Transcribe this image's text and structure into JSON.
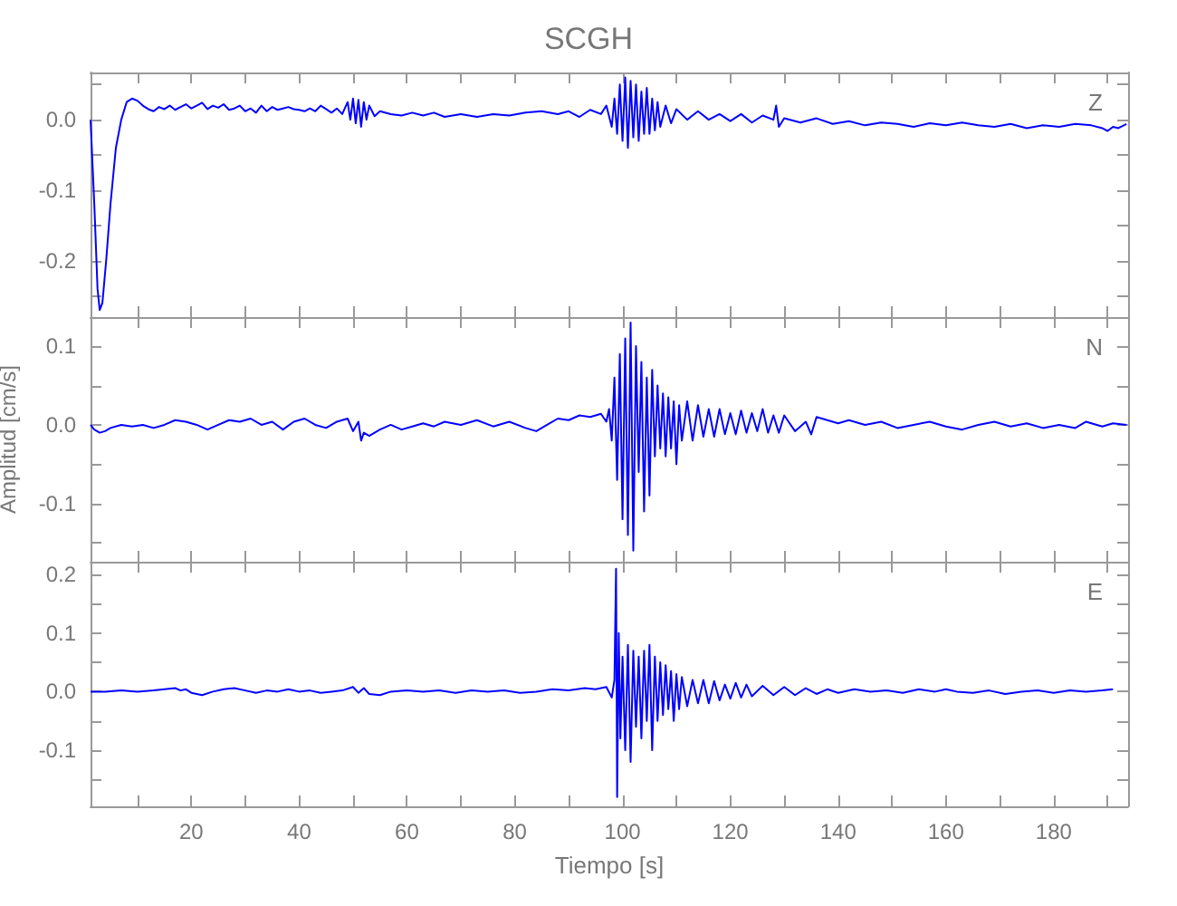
{
  "chart_data": [
    {
      "type": "line",
      "title": "SCGH",
      "annotations": [
        "Z"
      ],
      "color": "#0000ff",
      "grid": false,
      "tick_labels": "y",
      "xlim": [
        1.3,
        193.8
      ],
      "ylim": [
        -0.28,
        0.067
      ],
      "xticks": [
        {
          "value": 10,
          "label": null
        },
        {
          "value": 20,
          "label": null
        },
        {
          "value": 30,
          "label": null
        },
        {
          "value": 40,
          "label": null
        },
        {
          "value": 50,
          "label": null
        },
        {
          "value": 60,
          "label": null
        },
        {
          "value": 70,
          "label": null
        },
        {
          "value": 80,
          "label": null
        },
        {
          "value": 90,
          "label": null
        },
        {
          "value": 100,
          "label": null
        },
        {
          "value": 110,
          "label": null
        },
        {
          "value": 120,
          "label": null
        },
        {
          "value": 130,
          "label": null
        },
        {
          "value": 140,
          "label": null
        },
        {
          "value": 150,
          "label": null
        },
        {
          "value": 160,
          "label": null
        },
        {
          "value": 170,
          "label": null
        },
        {
          "value": 180,
          "label": null
        },
        {
          "value": 190,
          "label": null
        }
      ],
      "yticks": [
        {
          "value": -0.25,
          "label": null
        },
        -0.2,
        {
          "value": -0.15,
          "label": null
        },
        -0.1,
        {
          "value": -0.05,
          "label": null
        },
        {
          "value": 0,
          "label": "0.0"
        },
        {
          "value": 0.05,
          "label": null
        }
      ],
      "x": [
        1.3,
        2.0,
        2.6,
        3.0,
        3.5,
        4.2,
        5,
        6,
        7,
        8,
        9,
        10,
        11,
        12,
        13,
        14,
        15,
        16,
        17,
        18,
        19,
        20,
        21,
        22,
        23,
        24,
        25,
        26,
        27,
        28,
        29,
        30,
        31,
        32,
        33,
        34,
        35,
        36,
        37,
        38,
        39,
        40,
        41,
        42,
        43,
        44,
        45,
        46,
        47,
        48,
        49,
        49.5,
        50,
        50.5,
        51,
        51.5,
        52,
        52.5,
        53,
        54,
        55,
        57,
        59,
        61,
        63,
        65,
        67,
        70,
        73,
        76,
        79,
        82,
        85,
        88,
        90,
        92,
        94,
        96,
        97,
        98,
        98.5,
        99,
        99.5,
        100,
        100.5,
        101,
        101.5,
        102,
        102.5,
        103,
        103.5,
        104,
        104.5,
        105,
        105.5,
        106,
        106.5,
        107,
        108,
        109,
        110,
        112,
        114,
        116,
        118,
        120,
        122,
        124,
        126,
        128,
        128.5,
        129,
        130,
        133,
        136,
        139,
        142,
        145,
        148,
        151,
        154,
        157,
        160,
        163,
        166,
        169,
        172,
        175,
        178,
        181,
        184,
        187,
        189,
        190,
        191,
        192,
        193.5
      ],
      "values": [
        0.0,
        -0.12,
        -0.24,
        -0.27,
        -0.26,
        -0.2,
        -0.12,
        -0.04,
        0.0,
        0.025,
        0.03,
        0.027,
        0.02,
        0.015,
        0.012,
        0.018,
        0.015,
        0.02,
        0.014,
        0.018,
        0.022,
        0.016,
        0.02,
        0.024,
        0.015,
        0.02,
        0.017,
        0.022,
        0.014,
        0.016,
        0.02,
        0.012,
        0.016,
        0.01,
        0.02,
        0.012,
        0.018,
        0.014,
        0.016,
        0.018,
        0.015,
        0.014,
        0.012,
        0.016,
        0.012,
        0.02,
        0.015,
        0.01,
        0.016,
        0.008,
        0.025,
        0.0,
        0.03,
        -0.005,
        0.028,
        -0.01,
        0.025,
        0.0,
        0.02,
        0.005,
        0.012,
        0.008,
        0.006,
        0.01,
        0.006,
        0.01,
        0.004,
        0.008,
        0.004,
        0.008,
        0.006,
        0.01,
        0.012,
        0.008,
        0.012,
        0.004,
        0.014,
        0.008,
        0.02,
        -0.01,
        0.03,
        -0.02,
        0.05,
        -0.03,
        0.06,
        -0.04,
        0.055,
        -0.025,
        0.05,
        -0.03,
        0.04,
        -0.02,
        0.045,
        -0.02,
        0.03,
        -0.015,
        0.025,
        -0.01,
        0.02,
        -0.005,
        0.015,
        0.0,
        0.012,
        0.0,
        0.008,
        -0.002,
        0.008,
        -0.004,
        0.006,
        0.0,
        0.02,
        -0.01,
        0.002,
        -0.004,
        0.002,
        -0.006,
        -0.002,
        -0.008,
        -0.004,
        -0.006,
        -0.01,
        -0.005,
        -0.008,
        -0.004,
        -0.008,
        -0.01,
        -0.006,
        -0.012,
        -0.008,
        -0.01,
        -0.006,
        -0.008,
        -0.012,
        -0.016,
        -0.01,
        -0.012,
        -0.006
      ]
    },
    {
      "type": "line",
      "ylabel": "Amplitud [cm/s]",
      "annotations": [
        "N"
      ],
      "color": "#0000ff",
      "grid": false,
      "tick_labels": "y",
      "xlim": [
        1.3,
        193.8
      ],
      "ylim": [
        -0.174,
        0.137
      ],
      "xticks": [
        {
          "value": 10,
          "label": null
        },
        {
          "value": 20,
          "label": null
        },
        {
          "value": 30,
          "label": null
        },
        {
          "value": 40,
          "label": null
        },
        {
          "value": 50,
          "label": null
        },
        {
          "value": 60,
          "label": null
        },
        {
          "value": 70,
          "label": null
        },
        {
          "value": 80,
          "label": null
        },
        {
          "value": 90,
          "label": null
        },
        {
          "value": 100,
          "label": null
        },
        {
          "value": 110,
          "label": null
        },
        {
          "value": 120,
          "label": null
        },
        {
          "value": 130,
          "label": null
        },
        {
          "value": 140,
          "label": null
        },
        {
          "value": 150,
          "label": null
        },
        {
          "value": 160,
          "label": null
        },
        {
          "value": 170,
          "label": null
        },
        {
          "value": 180,
          "label": null
        },
        {
          "value": 190,
          "label": null
        }
      ],
      "yticks": [
        {
          "value": -0.15,
          "label": null
        },
        -0.1,
        {
          "value": -0.05,
          "label": null
        },
        {
          "value": 0,
          "label": "0.0"
        },
        {
          "value": 0.05,
          "label": null
        },
        0.1
      ],
      "x": [
        1.3,
        2,
        3,
        4,
        5,
        7,
        9,
        11,
        13,
        15,
        17,
        19,
        21,
        23,
        25,
        27,
        29,
        31,
        33,
        35,
        37,
        39,
        41,
        43,
        45,
        47,
        49,
        50,
        51,
        51.5,
        52,
        53,
        55,
        57,
        59,
        61,
        63,
        65,
        67,
        70,
        73,
        76,
        79,
        82,
        84,
        86,
        88,
        90,
        92,
        94,
        96,
        97,
        97.5,
        98,
        98.5,
        99,
        99.5,
        100,
        100.5,
        101,
        101.5,
        102,
        102.5,
        103,
        103.5,
        104,
        104.5,
        105,
        105.5,
        106,
        106.5,
        107,
        107.5,
        108,
        108.5,
        109,
        109.5,
        110,
        110.5,
        111,
        112,
        113,
        114,
        115,
        116,
        117,
        118,
        119,
        120,
        121,
        122,
        123,
        124,
        125,
        126,
        127,
        128,
        129,
        130,
        132,
        134,
        135,
        136,
        138,
        140,
        142,
        145,
        148,
        151,
        154,
        157,
        160,
        163,
        166,
        169,
        172,
        175,
        178,
        181,
        184,
        186,
        189,
        191,
        193.5
      ],
      "values": [
        0.0,
        -0.006,
        -0.01,
        -0.008,
        -0.004,
        0.0,
        -0.002,
        0.0,
        -0.004,
        0.0,
        0.006,
        0.004,
        0.0,
        -0.006,
        0.0,
        0.006,
        0.004,
        0.008,
        0.0,
        0.004,
        -0.006,
        0.004,
        0.008,
        0.0,
        -0.004,
        0.004,
        0.008,
        -0.008,
        0.004,
        -0.02,
        -0.01,
        -0.014,
        -0.006,
        0.0,
        -0.006,
        -0.002,
        0.002,
        -0.002,
        0.004,
        0.0,
        0.006,
        -0.002,
        0.004,
        -0.004,
        -0.008,
        0.0,
        0.008,
        0.006,
        0.012,
        0.01,
        0.014,
        0.004,
        0.02,
        -0.02,
        0.06,
        -0.07,
        0.09,
        -0.12,
        0.11,
        -0.14,
        0.13,
        -0.16,
        0.1,
        -0.06,
        0.08,
        -0.11,
        0.06,
        -0.09,
        0.07,
        -0.04,
        0.05,
        -0.03,
        0.04,
        -0.04,
        0.035,
        -0.03,
        0.03,
        -0.05,
        0.025,
        -0.02,
        0.03,
        -0.02,
        0.025,
        -0.015,
        0.02,
        -0.015,
        0.02,
        -0.012,
        0.015,
        -0.012,
        0.018,
        -0.01,
        0.015,
        -0.008,
        0.02,
        -0.01,
        0.012,
        -0.01,
        0.012,
        -0.008,
        0.004,
        -0.012,
        0.01,
        0.006,
        0.002,
        0.006,
        0.0,
        0.004,
        -0.004,
        0.0,
        0.004,
        -0.002,
        -0.006,
        0.0,
        0.004,
        -0.002,
        0.002,
        -0.004,
        0.0,
        -0.004,
        0.004,
        -0.002,
        0.002,
        0.0
      ]
    },
    {
      "type": "line",
      "xlabel": "Tiempo [s]",
      "annotations": [
        "E"
      ],
      "color": "#0000ff",
      "grid": false,
      "xlim": [
        1.3,
        193.8
      ],
      "ylim": [
        -0.196,
        0.222
      ],
      "xticks": [
        {
          "value": 10,
          "label": null
        },
        20,
        {
          "value": 30,
          "label": null
        },
        40,
        {
          "value": 50,
          "label": null
        },
        60,
        {
          "value": 70,
          "label": null
        },
        80,
        {
          "value": 90,
          "label": null
        },
        100,
        {
          "value": 110,
          "label": null
        },
        120,
        {
          "value": 130,
          "label": null
        },
        140,
        {
          "value": 150,
          "label": null
        },
        160,
        {
          "value": 170,
          "label": null
        },
        180,
        {
          "value": 190,
          "label": null
        }
      ],
      "yticks": [
        {
          "value": -0.15,
          "label": null
        },
        -0.1,
        {
          "value": -0.05,
          "label": null
        },
        {
          "value": 0,
          "label": "0.0"
        },
        {
          "value": 0.05,
          "label": null
        },
        0.1,
        {
          "value": 0.15,
          "label": null
        },
        0.2
      ],
      "x": [
        1.3,
        4,
        7,
        10,
        13,
        15,
        17,
        18,
        19,
        20,
        22,
        24,
        26,
        28,
        30,
        32,
        34,
        36,
        38,
        40,
        42,
        44,
        46,
        48,
        50,
        51,
        52,
        53,
        55,
        57,
        60,
        63,
        66,
        69,
        72,
        75,
        78,
        81,
        84,
        87,
        90,
        93,
        95,
        97,
        98,
        98.5,
        98.8,
        99,
        99.3,
        99.6,
        100,
        100.5,
        101,
        101.5,
        102,
        102.5,
        103,
        103.5,
        104,
        104.5,
        105,
        105.5,
        106,
        106.5,
        107,
        107.5,
        108,
        108.5,
        109,
        109.5,
        110,
        110.5,
        111,
        112,
        113,
        114,
        115,
        116,
        117,
        118,
        119,
        120,
        121,
        122,
        123,
        124,
        126,
        128,
        130,
        132,
        134,
        136,
        138,
        140,
        143,
        146,
        149,
        152,
        155,
        158,
        160,
        162,
        165,
        168,
        171,
        174,
        177,
        180,
        183,
        186,
        189,
        191
      ],
      "values": [
        0.0,
        0.0,
        0.002,
        0.0,
        0.002,
        0.004,
        0.006,
        0.002,
        0.004,
        -0.002,
        -0.006,
        0.0,
        0.004,
        0.006,
        0.002,
        -0.002,
        0.002,
        0.0,
        0.004,
        0.0,
        0.002,
        -0.002,
        0.0,
        0.002,
        0.008,
        -0.002,
        0.006,
        -0.004,
        -0.006,
        0.0,
        0.002,
        0.0,
        0.002,
        -0.002,
        0.002,
        0.0,
        0.002,
        -0.002,
        0.0,
        0.004,
        0.002,
        0.006,
        0.004,
        0.008,
        -0.01,
        0.02,
        0.21,
        -0.18,
        0.1,
        -0.08,
        0.06,
        -0.1,
        0.08,
        -0.12,
        0.07,
        -0.06,
        0.06,
        -0.08,
        0.07,
        -0.05,
        0.08,
        -0.1,
        0.06,
        -0.05,
        0.05,
        -0.04,
        0.045,
        -0.03,
        0.035,
        -0.05,
        0.03,
        -0.03,
        0.025,
        -0.025,
        0.02,
        -0.02,
        0.02,
        -0.02,
        0.018,
        -0.015,
        0.012,
        -0.012,
        0.015,
        -0.01,
        0.012,
        -0.008,
        0.01,
        -0.006,
        0.008,
        -0.006,
        0.006,
        -0.004,
        0.004,
        -0.002,
        0.004,
        0.0,
        0.002,
        -0.002,
        0.004,
        0.0,
        0.004,
        0.0,
        -0.002,
        0.002,
        -0.004,
        0.0,
        0.002,
        -0.002,
        0.002,
        0.0,
        0.002,
        0.004
      ]
    }
  ]
}
